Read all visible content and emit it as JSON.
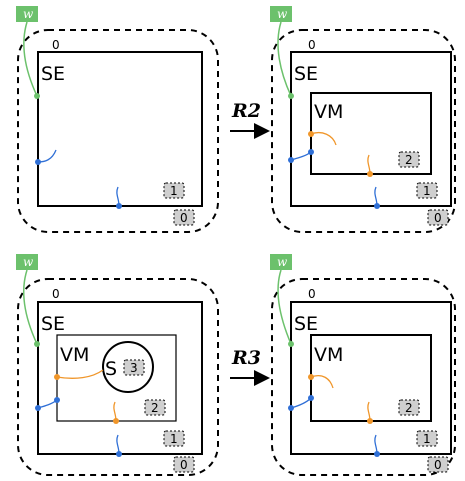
{
  "colors": {
    "world": "#6cc16c",
    "handle_blue": "#2f6fd6",
    "handle_orange": "#f0962a",
    "badge_fill": "#cfcfcf",
    "stroke": "#000000"
  },
  "panels": {
    "p1": {
      "w": "w",
      "top_label": "0",
      "se": "SE",
      "badge_inner": "1",
      "badge_outer": "0"
    },
    "p2": {
      "w": "w",
      "top_label": "0",
      "se": "SE",
      "vm": "VM",
      "badge_vm": "2",
      "badge_inner": "1",
      "badge_outer": "0"
    },
    "p3": {
      "w": "w",
      "top_label": "0",
      "se": "SE",
      "vm": "VM",
      "s": "S",
      "badge_s": "3",
      "badge_vm": "2",
      "badge_inner": "1",
      "badge_outer": "0"
    },
    "p4": {
      "w": "w",
      "top_label": "0",
      "se": "SE",
      "vm": "VM",
      "badge_vm": "2",
      "badge_inner": "1",
      "badge_outer": "0"
    }
  },
  "rules": {
    "r2": "R2",
    "r3": "R3"
  }
}
